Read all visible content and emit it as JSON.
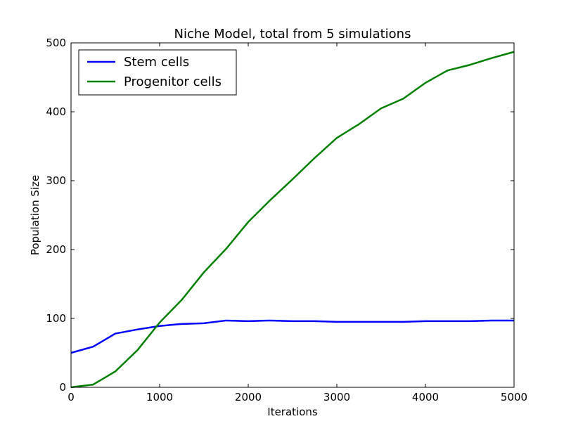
{
  "chart_data": {
    "type": "line",
    "title": "Niche Model, total from 5 simulations",
    "xlabel": "Iterations",
    "ylabel": "Population Size",
    "xlim": [
      0,
      5000
    ],
    "ylim": [
      0,
      500
    ],
    "x_ticks": [
      0,
      1000,
      2000,
      3000,
      4000,
      5000
    ],
    "y_ticks": [
      0,
      100,
      200,
      300,
      400,
      500
    ],
    "x_tick_labels": [
      "0",
      "1000",
      "2000",
      "3000",
      "4000",
      "5000"
    ],
    "y_tick_labels": [
      "0",
      "100",
      "200",
      "300",
      "400",
      "500"
    ],
    "grid": false,
    "legend_position": "top-left",
    "x": [
      0,
      250,
      500,
      750,
      1000,
      1250,
      1500,
      1750,
      2000,
      2250,
      2500,
      2750,
      3000,
      3250,
      3500,
      3750,
      4000,
      4250,
      4500,
      4750,
      5000
    ],
    "series": [
      {
        "name": "Stem cells",
        "color": "#0000ff",
        "values": [
          50,
          59,
          78,
          84,
          89,
          92,
          93,
          97,
          96,
          97,
          96,
          96,
          95,
          95,
          95,
          95,
          96,
          96,
          96,
          97,
          97
        ]
      },
      {
        "name": "Progenitor cells",
        "color": "#008000",
        "values": [
          0,
          4,
          23,
          54,
          94,
          127,
          167,
          201,
          240,
          272,
          302,
          333,
          362,
          382,
          405,
          419,
          442,
          460,
          468,
          478,
          487
        ]
      }
    ]
  }
}
